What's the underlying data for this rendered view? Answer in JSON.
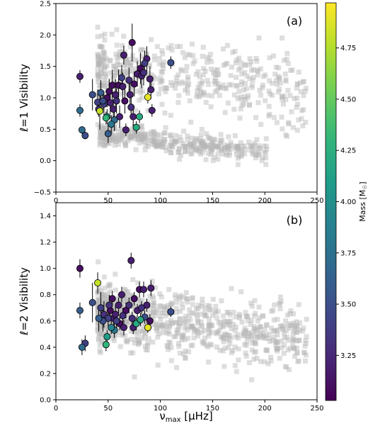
{
  "chart_data": [
    {
      "type": "scatter",
      "panel_label": "(a)",
      "xlabel_main": "ν",
      "xlabel_sub": "max",
      "xlabel_unit": " [μHz]",
      "ylabel": "ℓ=1 Visibility",
      "xlim": [
        0,
        250
      ],
      "ylim": [
        -0.5,
        2.5
      ],
      "xticks": [
        "0",
        "50",
        "100",
        "150",
        "200",
        "250"
      ],
      "yticks": [
        "−0.5",
        "0.0",
        "0.5",
        "1.0",
        "1.5",
        "2.0",
        "2.5"
      ],
      "grid": false,
      "background_series": {
        "marker": "square",
        "color": "#bdbdbd",
        "description": "two branches: upper ~0.9-2.3 spanning 40-240 μHz; lower ~0-0.5 spanning 40-200 μHz"
      },
      "series": [
        {
          "marker": "circle",
          "color_by": "mass",
          "points": [
            [
              23,
              1.34,
              0.1,
              3.2
            ],
            [
              23,
              0.8,
              0.1,
              3.7
            ],
            [
              25,
              0.49,
              0.06,
              3.7
            ],
            [
              28,
              0.4,
              0.06,
              3.5
            ],
            [
              35,
              1.05,
              0.25,
              3.5
            ],
            [
              40,
              0.93,
              0.2,
              3.4
            ],
            [
              41,
              0.82,
              0.12,
              3.3
            ],
            [
              42,
              0.79,
              0.3,
              4.8
            ],
            [
              43,
              1.08,
              0.2,
              3.6
            ],
            [
              45,
              0.95,
              0.15,
              3.5
            ],
            [
              46,
              0.9,
              0.2,
              3.4
            ],
            [
              48,
              0.68,
              0.1,
              4.3
            ],
            [
              49,
              1.0,
              0.15,
              3.1
            ],
            [
              49,
              0.7,
              0.12,
              4.0
            ],
            [
              50,
              0.43,
              0.15,
              3.6
            ],
            [
              51,
              1.1,
              0.2,
              3.1
            ],
            [
              52,
              0.92,
              0.18,
              3.2
            ],
            [
              53,
              0.58,
              0.15,
              3.8
            ],
            [
              54,
              1.2,
              0.25,
              3.1
            ],
            [
              55,
              0.82,
              0.15,
              3.2
            ],
            [
              56,
              0.65,
              0.18,
              3.7
            ],
            [
              57,
              1.05,
              0.25,
              3.2
            ],
            [
              58,
              0.95,
              0.2,
              3.3
            ],
            [
              60,
              1.2,
              0.25,
              3.1
            ],
            [
              61,
              0.7,
              0.18,
              3.2
            ],
            [
              63,
              1.32,
              0.2,
              3.4
            ],
            [
              64,
              1.18,
              0.22,
              3.2
            ],
            [
              65,
              1.68,
              0.15,
              3.2
            ],
            [
              66,
              0.95,
              0.2,
              3.1
            ],
            [
              67,
              0.49,
              0.1,
              3.2
            ],
            [
              70,
              1.28,
              0.2,
              3.3
            ],
            [
              71,
              1.05,
              0.2,
              3.2
            ],
            [
              72,
              0.85,
              0.15,
              3.3
            ],
            [
              73,
              1.88,
              0.3,
              3.1
            ],
            [
              74,
              0.7,
              0.15,
              3.2
            ],
            [
              75,
              1.22,
              0.2,
              3.1
            ],
            [
              77,
              0.53,
              0.1,
              4.2
            ],
            [
              78,
              1.38,
              0.2,
              3.2
            ],
            [
              80,
              0.7,
              0.1,
              4.2
            ],
            [
              81,
              1.47,
              0.25,
              3.1
            ],
            [
              82,
              1.35,
              0.2,
              3.2
            ],
            [
              84,
              1.4,
              0.2,
              3.3
            ],
            [
              85,
              1.55,
              0.2,
              3.4
            ],
            [
              87,
              1.62,
              0.2,
              3.2
            ],
            [
              88,
              1.01,
              0.1,
              4.9
            ],
            [
              90,
              1.3,
              0.2,
              3.2
            ],
            [
              91,
              1.13,
              0.15,
              3.2
            ],
            [
              92,
              0.8,
              0.1,
              3.2
            ],
            [
              110,
              1.56,
              0.1,
              3.5
            ]
          ]
        }
      ]
    },
    {
      "type": "scatter",
      "panel_label": "(b)",
      "xlabel_main": "ν",
      "xlabel_sub": "max",
      "xlabel_unit": " [μHz]",
      "ylabel": "ℓ=2 Visibility",
      "xlim": [
        0,
        250
      ],
      "ylim": [
        0.0,
        1.5
      ],
      "xticks": [
        "0",
        "50",
        "100",
        "150",
        "200",
        "250"
      ],
      "yticks": [
        "0.0",
        "0.2",
        "0.4",
        "0.6",
        "0.8",
        "1.0",
        "1.2",
        "1.4"
      ],
      "grid": false,
      "background_series": {
        "marker": "square",
        "color": "#bdbdbd",
        "description": "single broad cloud centered ~0.6, spanning 40-240 μHz"
      },
      "series": [
        {
          "marker": "circle",
          "color_by": "mass",
          "points": [
            [
              23,
              1.0,
              0.07,
              3.1
            ],
            [
              23,
              0.68,
              0.06,
              3.6
            ],
            [
              25,
              0.4,
              0.06,
              3.7
            ],
            [
              28,
              0.43,
              0.06,
              3.4
            ],
            [
              35,
              0.74,
              0.15,
              3.5
            ],
            [
              40,
              0.89,
              0.08,
              4.8
            ],
            [
              41,
              0.62,
              0.1,
              3.6
            ],
            [
              43,
              0.7,
              0.12,
              3.4
            ],
            [
              45,
              0.6,
              0.08,
              3.5
            ],
            [
              46,
              0.65,
              0.1,
              3.3
            ],
            [
              48,
              0.42,
              0.05,
              4.3
            ],
            [
              49,
              0.48,
              0.05,
              4.1
            ],
            [
              50,
              0.62,
              0.06,
              3.4
            ],
            [
              51,
              0.72,
              0.08,
              3.3
            ],
            [
              52,
              0.68,
              0.05,
              3.1
            ],
            [
              53,
              0.55,
              0.05,
              3.9
            ],
            [
              54,
              0.77,
              0.06,
              3.1
            ],
            [
              55,
              0.62,
              0.05,
              3.2
            ],
            [
              56,
              0.53,
              0.06,
              3.8
            ],
            [
              57,
              0.65,
              0.06,
              3.2
            ],
            [
              58,
              0.6,
              0.05,
              3.4
            ],
            [
              60,
              0.72,
              0.06,
              3.2
            ],
            [
              61,
              0.58,
              0.05,
              3.1
            ],
            [
              63,
              0.8,
              0.06,
              3.2
            ],
            [
              64,
              0.64,
              0.06,
              3.3
            ],
            [
              65,
              0.55,
              0.06,
              3.2
            ],
            [
              67,
              0.68,
              0.06,
              3.1
            ],
            [
              70,
              0.72,
              0.06,
              3.3
            ],
            [
              72,
              1.06,
              0.06,
              3.2
            ],
            [
              73,
              0.62,
              0.05,
              3.3
            ],
            [
              74,
              0.55,
              0.05,
              3.2
            ],
            [
              75,
              0.77,
              0.05,
              3.1
            ],
            [
              77,
              0.58,
              0.05,
              4.2
            ],
            [
              78,
              0.68,
              0.05,
              3.2
            ],
            [
              80,
              0.84,
              0.06,
              3.1
            ],
            [
              81,
              0.61,
              0.05,
              4.2
            ],
            [
              82,
              0.7,
              0.05,
              3.3
            ],
            [
              84,
              0.84,
              0.06,
              3.2
            ],
            [
              85,
              0.63,
              0.05,
              3.5
            ],
            [
              87,
              0.72,
              0.05,
              3.2
            ],
            [
              88,
              0.55,
              0.04,
              4.9
            ],
            [
              90,
              0.6,
              0.05,
              3.1
            ],
            [
              91,
              0.85,
              0.06,
              3.2
            ],
            [
              110,
              0.67,
              0.04,
              3.5
            ]
          ]
        }
      ]
    }
  ],
  "colorbar": {
    "label": "Mass [M",
    "label_sun": "☉",
    "label_end": "]",
    "range": [
      3.03,
      4.97
    ],
    "ticks": [
      "3.25",
      "3.50",
      "3.75",
      "4.00",
      "4.25",
      "4.50",
      "4.75"
    ],
    "colormap": "viridis"
  }
}
